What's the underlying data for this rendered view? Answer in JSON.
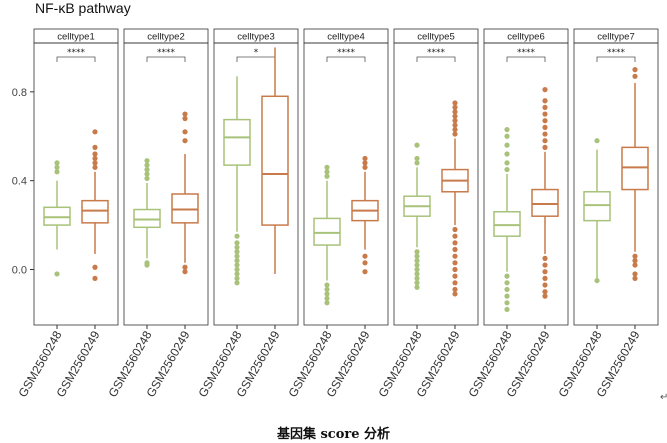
{
  "chart_data": {
    "type": "box",
    "title": "NF-κB pathway",
    "ylabel": "",
    "xlabel": "",
    "ylim": [
      -0.25,
      1.02
    ],
    "y_ticks": [
      0.0,
      0.4,
      0.8
    ],
    "y_tick_labels": [
      "0.0",
      "0.4",
      "0.8"
    ],
    "grid": false,
    "groups": [
      "GSM2560248",
      "GSM2560249"
    ],
    "colors": {
      "GSM2560248": "#a8c27a",
      "GSM2560249": "#c87a4a"
    },
    "panels": [
      {
        "name": "celltype1",
        "significance": "****",
        "boxes": [
          {
            "group": "GSM2560248",
            "q1": 0.2,
            "median": 0.235,
            "q3": 0.28,
            "whisker_low": 0.09,
            "whisker_high": 0.4,
            "outliers": [
              0.44,
              0.46,
              0.48,
              -0.02
            ]
          },
          {
            "group": "GSM2560249",
            "q1": 0.21,
            "median": 0.265,
            "q3": 0.31,
            "whisker_low": 0.07,
            "whisker_high": 0.44,
            "outliers": [
              0.46,
              0.48,
              0.5,
              0.52,
              0.55,
              0.62,
              0.01,
              -0.04
            ]
          }
        ]
      },
      {
        "name": "celltype2",
        "significance": "****",
        "boxes": [
          {
            "group": "GSM2560248",
            "q1": 0.19,
            "median": 0.225,
            "q3": 0.27,
            "whisker_low": 0.05,
            "whisker_high": 0.39,
            "outliers": [
              0.41,
              0.43,
              0.45,
              0.47,
              0.49,
              0.03,
              0.02
            ]
          },
          {
            "group": "GSM2560249",
            "q1": 0.21,
            "median": 0.27,
            "q3": 0.34,
            "whisker_low": 0.03,
            "whisker_high": 0.52,
            "outliers": [
              0.58,
              0.62,
              0.68,
              0.7,
              0.01,
              -0.01
            ]
          }
        ]
      },
      {
        "name": "celltype3",
        "significance": "*",
        "boxes": [
          {
            "group": "GSM2560248",
            "q1": 0.47,
            "median": 0.595,
            "q3": 0.675,
            "whisker_low": 0.17,
            "whisker_high": 0.87,
            "outliers": [
              0.15,
              0.12,
              0.1,
              0.08,
              0.06,
              0.04,
              0.02,
              0.0,
              -0.02,
              -0.04,
              -0.06
            ]
          },
          {
            "group": "GSM2560249",
            "q1": 0.2,
            "median": 0.43,
            "q3": 0.78,
            "whisker_low": -0.02,
            "whisker_high": 1.0,
            "outliers": []
          }
        ]
      },
      {
        "name": "celltype4",
        "significance": "****",
        "boxes": [
          {
            "group": "GSM2560248",
            "q1": 0.11,
            "median": 0.165,
            "q3": 0.23,
            "whisker_low": -0.05,
            "whisker_high": 0.4,
            "outliers": [
              0.42,
              0.44,
              0.46,
              -0.07,
              -0.09,
              -0.11,
              -0.13,
              -0.15
            ]
          },
          {
            "group": "GSM2560249",
            "q1": 0.22,
            "median": 0.265,
            "q3": 0.31,
            "whisker_low": 0.09,
            "whisker_high": 0.44,
            "outliers": [
              0.46,
              0.48,
              0.5,
              0.06,
              0.03,
              -0.01
            ]
          }
        ]
      },
      {
        "name": "celltype5",
        "significance": "****",
        "boxes": [
          {
            "group": "GSM2560248",
            "q1": 0.24,
            "median": 0.285,
            "q3": 0.33,
            "whisker_low": 0.1,
            "whisker_high": 0.46,
            "outliers": [
              0.48,
              0.5,
              0.56,
              0.08,
              0.06,
              0.04,
              0.02,
              0.0,
              -0.02,
              -0.04,
              -0.06,
              -0.08
            ]
          },
          {
            "group": "GSM2560249",
            "q1": 0.35,
            "median": 0.4,
            "q3": 0.45,
            "whisker_low": 0.2,
            "whisker_high": 0.59,
            "outliers": [
              0.61,
              0.63,
              0.65,
              0.67,
              0.69,
              0.71,
              0.73,
              0.75,
              0.18,
              0.15,
              0.12,
              0.09,
              0.06,
              0.03,
              0.0,
              -0.03,
              -0.06,
              -0.09,
              -0.11
            ]
          }
        ]
      },
      {
        "name": "celltype6",
        "significance": "****",
        "boxes": [
          {
            "group": "GSM2560248",
            "q1": 0.15,
            "median": 0.2,
            "q3": 0.26,
            "whisker_low": -0.01,
            "whisker_high": 0.43,
            "outliers": [
              0.45,
              0.48,
              0.52,
              0.56,
              0.6,
              0.63,
              -0.03,
              -0.06,
              -0.09,
              -0.12,
              -0.15,
              -0.18
            ]
          },
          {
            "group": "GSM2560249",
            "q1": 0.24,
            "median": 0.295,
            "q3": 0.36,
            "whisker_low": 0.07,
            "whisker_high": 0.53,
            "outliers": [
              0.55,
              0.58,
              0.61,
              0.64,
              0.67,
              0.7,
              0.73,
              0.76,
              0.81,
              0.05,
              0.02,
              -0.01,
              -0.04,
              -0.07,
              -0.1,
              -0.12
            ]
          }
        ]
      },
      {
        "name": "celltype7",
        "significance": "****",
        "boxes": [
          {
            "group": "GSM2560248",
            "q1": 0.22,
            "median": 0.29,
            "q3": 0.35,
            "whisker_low": -0.04,
            "whisker_high": 0.54,
            "outliers": [
              0.58,
              -0.05
            ]
          },
          {
            "group": "GSM2560249",
            "q1": 0.36,
            "median": 0.46,
            "q3": 0.55,
            "whisker_low": 0.08,
            "whisker_high": 0.84,
            "outliers": [
              0.87,
              0.9,
              0.06,
              0.04,
              0.02,
              -0.02,
              -0.04
            ]
          }
        ]
      }
    ]
  },
  "caption": "基因集  score 分析",
  "para_mark": "↵"
}
